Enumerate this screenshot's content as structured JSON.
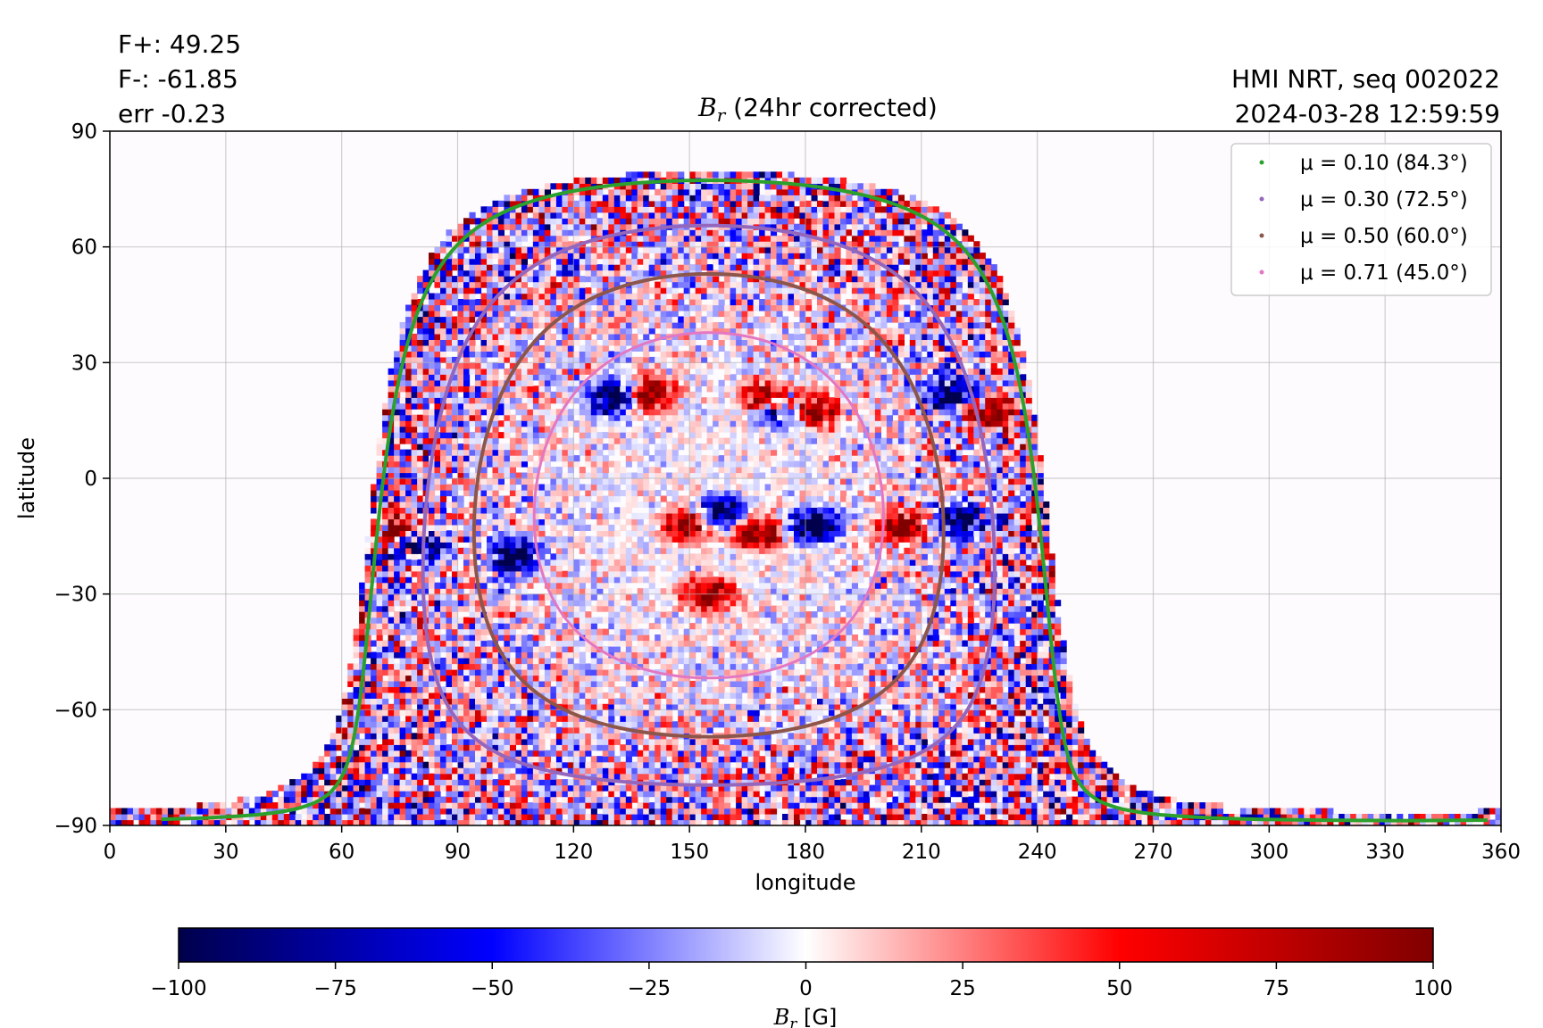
{
  "stats": {
    "fplus": "F+: 49.25",
    "fminus": "F-: -61.85",
    "err": "err -0.23"
  },
  "header_right": {
    "source": "HMI NRT, seq 002022",
    "timestamp": "2024-03-28 12:59:59"
  },
  "colors": {
    "negative_dark": "#00004c",
    "negative": "#0000ff",
    "zero": "#ffffff",
    "positive": "#ff0000",
    "positive_dark": "#800000",
    "limb_0_10": "#2ca02c",
    "mu_0_30": "#9467bd",
    "mu_0_50": "#8c564b",
    "mu_0_71": "#e377c2"
  },
  "chart_data": {
    "type": "heatmap",
    "title_var": "B",
    "title_sub": "r",
    "title_rest": " (24hr corrected)",
    "xlabel": "longitude",
    "ylabel": "latitude",
    "xlim": [
      0,
      360
    ],
    "ylim": [
      -90,
      90
    ],
    "xticks": [
      0,
      30,
      60,
      90,
      120,
      150,
      180,
      210,
      240,
      270,
      300,
      330,
      360
    ],
    "yticks": [
      90,
      60,
      30,
      0,
      -30,
      -60,
      -90
    ],
    "ytick_labels": [
      "90",
      "60",
      "30",
      "0",
      "−30",
      "−60",
      "−90"
    ],
    "grid": true,
    "disk_center": {
      "lon": 155,
      "lat": -7
    },
    "legend_position": "top-right",
    "legend": [
      {
        "label": "μ = 0.10 (84.3°)",
        "color": "#2ca02c"
      },
      {
        "label": "μ = 0.30 (72.5°)",
        "color": "#9467bd"
      },
      {
        "label": "μ = 0.50 (60.0°)",
        "color": "#8c564b"
      },
      {
        "label": "μ = 0.71 (45.0°)",
        "color": "#e377c2"
      }
    ],
    "contours": [
      {
        "mu": 0.1,
        "angle_deg": 84.3,
        "color": "#2ca02c",
        "width": 4
      },
      {
        "mu": 0.3,
        "angle_deg": 72.5,
        "color": "#9467bd",
        "width": 4
      },
      {
        "mu": 0.5,
        "angle_deg": 60.0,
        "color": "#8c564b",
        "width": 4
      },
      {
        "mu": 0.71,
        "angle_deg": 45.0,
        "color": "#e377c2",
        "width": 3
      }
    ],
    "active_regions": [
      {
        "lon": 218,
        "lat": 22,
        "polarity": "negative"
      },
      {
        "lon": 228,
        "lat": 18,
        "polarity": "positive"
      },
      {
        "lon": 205,
        "lat": -12,
        "polarity": "positive"
      },
      {
        "lon": 220,
        "lat": -11,
        "polarity": "negative"
      },
      {
        "lon": 75,
        "lat": -13,
        "polarity": "positive"
      },
      {
        "lon": 80,
        "lat": -17,
        "polarity": "negative"
      },
      {
        "lon": 140,
        "lat": 22,
        "polarity": "positive"
      },
      {
        "lon": 130,
        "lat": 21,
        "polarity": "negative"
      },
      {
        "lon": 170,
        "lat": 21,
        "polarity": "positive"
      },
      {
        "lon": 182,
        "lat": 18,
        "polarity": "positive"
      },
      {
        "lon": 173,
        "lat": 18,
        "polarity": "negative"
      },
      {
        "lon": 150,
        "lat": -12,
        "polarity": "positive"
      },
      {
        "lon": 158,
        "lat": -9,
        "polarity": "negative"
      },
      {
        "lon": 168,
        "lat": -14,
        "polarity": "positive"
      },
      {
        "lon": 182,
        "lat": -12,
        "polarity": "negative"
      },
      {
        "lon": 155,
        "lat": -30,
        "polarity": "positive"
      },
      {
        "lon": 105,
        "lat": -20,
        "polarity": "negative"
      }
    ],
    "colorbar": {
      "label_var": "B",
      "label_sub": "r",
      "label_unit": " [G]",
      "range": [
        -100,
        100
      ],
      "ticks": [
        -100,
        -75,
        -50,
        -25,
        0,
        25,
        50,
        75,
        100
      ],
      "tick_labels": [
        "−100",
        "−75",
        "−50",
        "−25",
        "0",
        "25",
        "50",
        "75",
        "100"
      ]
    }
  }
}
